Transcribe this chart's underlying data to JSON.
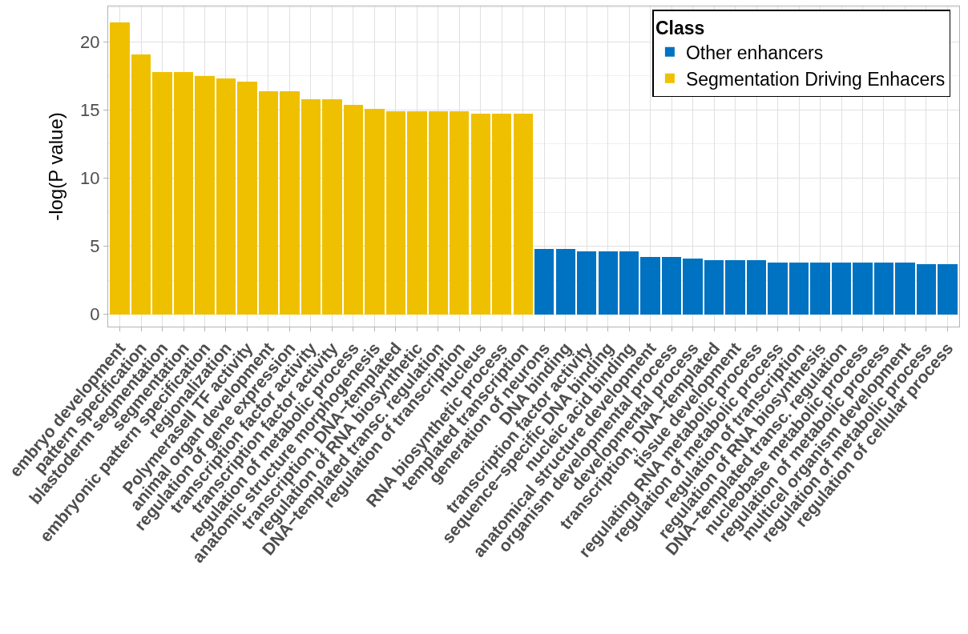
{
  "chart_data": {
    "type": "bar",
    "ylabel": "-log(P value)",
    "legend_title": "Class",
    "categories": [
      "embryo development",
      "pattern specification",
      "blastoderm segmentation",
      "segmentation",
      "embryonic pattern specification",
      "regionalization",
      "PolymeraseII TF activity",
      "animal organ development",
      "regulation of gene expression",
      "transcription factor activity",
      "transcription factor activity",
      "regulation of metabolic process",
      "anatomic structure morphogenesis",
      "transcription, DNA−templated",
      "regulation of RNA biosynthetic",
      "DNA−templated transc. regulation",
      "regulation of transcription",
      "nucleus",
      "RNA biosynthetic process",
      "templated transcription",
      "generation of neurons",
      "DNA binding",
      "transcription factor activity",
      "sequence−specific DNA binding",
      "nucleic acid binding",
      "anatomical structure development",
      "organism developmental process",
      "developmental process",
      "transcription, DNA−templated",
      "tissue development",
      "regulating RNA metabolic process",
      "regulation of metabolic process",
      "regulation of transcription",
      "regulation of RNA biosynthesis",
      "DNA−templated transc. regulation",
      "nucleobase metabolic process",
      "regulation of metabolic process",
      "multicel organism development",
      "regulation of metabolic process",
      "regulation of cellular process"
    ],
    "series": [
      {
        "name": "Other enhancers",
        "color": "#0072c2",
        "values": [
          null,
          null,
          null,
          null,
          null,
          null,
          null,
          null,
          null,
          null,
          null,
          null,
          null,
          null,
          null,
          null,
          null,
          null,
          null,
          null,
          4.8,
          4.8,
          4.6,
          4.6,
          4.6,
          4.2,
          4.2,
          4.1,
          4.0,
          4.0,
          4.0,
          3.8,
          3.8,
          3.8,
          3.8,
          3.8,
          3.8,
          3.8,
          3.7,
          3.7
        ]
      },
      {
        "name": "Segmentation Driving Enhacers",
        "color": "#efc000",
        "values": [
          21.4,
          19.1,
          17.8,
          17.8,
          17.5,
          17.3,
          17.1,
          16.4,
          16.4,
          15.8,
          15.8,
          15.4,
          15.1,
          14.9,
          14.9,
          14.9,
          14.9,
          14.7,
          14.7,
          14.7,
          null,
          null,
          null,
          null,
          null,
          null,
          null,
          null,
          null,
          null,
          null,
          null,
          null,
          null,
          null,
          null,
          null,
          null,
          null,
          null
        ]
      }
    ],
    "ylim": [
      -0.9,
      22.6
    ],
    "yticks": [
      0,
      5,
      10,
      15,
      20
    ],
    "grid": true,
    "legend": "top right"
  }
}
